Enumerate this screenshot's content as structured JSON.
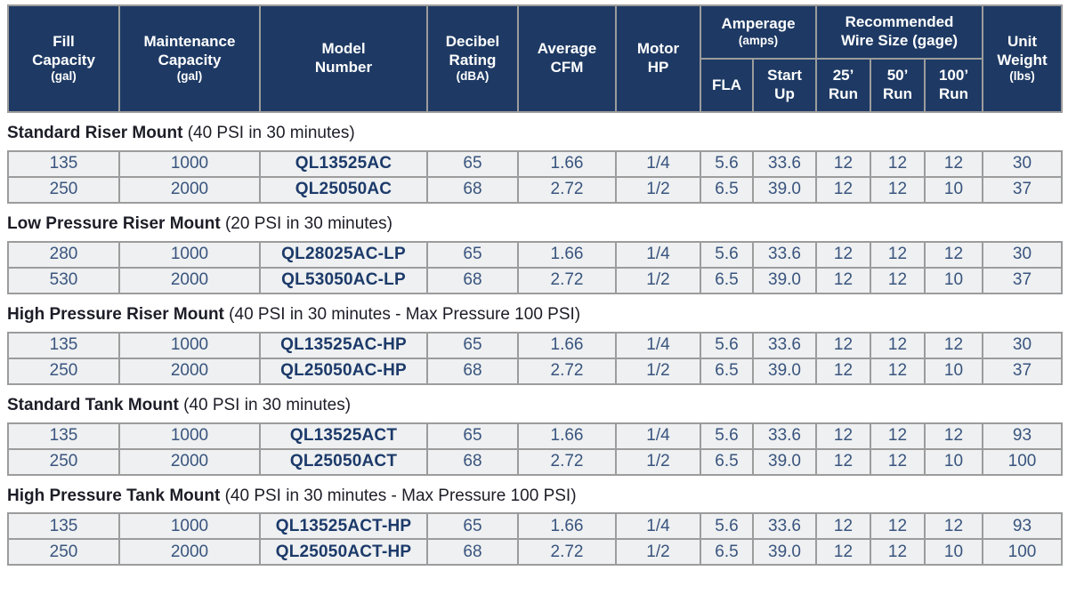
{
  "colors": {
    "header_bg": "#1e3a64",
    "border": "#9c9c9c",
    "row_bg": "#eef0f1",
    "data_text": "#39547e",
    "model_text": "#1c3a6a",
    "title_text": "#1d1d27"
  },
  "header": {
    "fill": {
      "label": "Fill\nCapacity",
      "unit": "(gal)"
    },
    "maintenance": {
      "label": "Maintenance\nCapacity",
      "unit": "(gal)"
    },
    "model": {
      "label": "Model\nNumber",
      "unit": ""
    },
    "decibel": {
      "label": "Decibel\nRating",
      "unit": "(dBA)"
    },
    "cfm": {
      "label": "Average\nCFM",
      "unit": ""
    },
    "hp": {
      "label": "Motor\nHP",
      "unit": ""
    },
    "amperage": {
      "label": "Amperage",
      "unit": "(amps)"
    },
    "wire": {
      "label": "Recommended\nWire Size (gage)",
      "unit": ""
    },
    "weight": {
      "label": "Unit\nWeight",
      "unit": "(lbs)"
    },
    "fla": {
      "label": "FLA"
    },
    "startup": {
      "label": "Start\nUp"
    },
    "run25": {
      "label": "25’\nRun"
    },
    "run50": {
      "label": "50’\nRun"
    },
    "run100": {
      "label": "100’\nRun"
    }
  },
  "sections": [
    {
      "title": "Standard Riser Mount",
      "note": "(40 PSI in 30 minutes)",
      "rows": [
        [
          "135",
          "1000",
          "QL13525AC",
          "65",
          "1.66",
          "1/4",
          "5.6",
          "33.6",
          "12",
          "12",
          "12",
          "30"
        ],
        [
          "250",
          "2000",
          "QL25050AC",
          "68",
          "2.72",
          "1/2",
          "6.5",
          "39.0",
          "12",
          "12",
          "10",
          "37"
        ]
      ]
    },
    {
      "title": "Low Pressure Riser Mount",
      "note": "(20 PSI in 30 minutes)",
      "rows": [
        [
          "280",
          "1000",
          "QL28025AC-LP",
          "65",
          "1.66",
          "1/4",
          "5.6",
          "33.6",
          "12",
          "12",
          "12",
          "30"
        ],
        [
          "530",
          "2000",
          "QL53050AC-LP",
          "68",
          "2.72",
          "1/2",
          "6.5",
          "39.0",
          "12",
          "12",
          "10",
          "37"
        ]
      ]
    },
    {
      "title": "High Pressure Riser Mount",
      "note": "(40 PSI in 30 minutes - Max Pressure 100 PSI)",
      "rows": [
        [
          "135",
          "1000",
          "QL13525AC-HP",
          "65",
          "1.66",
          "1/4",
          "5.6",
          "33.6",
          "12",
          "12",
          "12",
          "30"
        ],
        [
          "250",
          "2000",
          "QL25050AC-HP",
          "68",
          "2.72",
          "1/2",
          "6.5",
          "39.0",
          "12",
          "12",
          "10",
          "37"
        ]
      ]
    },
    {
      "title": "Standard Tank Mount",
      "note": "(40 PSI in 30 minutes)",
      "rows": [
        [
          "135",
          "1000",
          "QL13525ACT",
          "65",
          "1.66",
          "1/4",
          "5.6",
          "33.6",
          "12",
          "12",
          "12",
          "93"
        ],
        [
          "250",
          "2000",
          "QL25050ACT",
          "68",
          "2.72",
          "1/2",
          "6.5",
          "39.0",
          "12",
          "12",
          "10",
          "100"
        ]
      ]
    },
    {
      "title": "High Pressure Tank Mount",
      "note": "(40 PSI in 30 minutes - Max Pressure 100 PSI)",
      "rows": [
        [
          "135",
          "1000",
          "QL13525ACT-HP",
          "65",
          "1.66",
          "1/4",
          "5.6",
          "33.6",
          "12",
          "12",
          "12",
          "93"
        ],
        [
          "250",
          "2000",
          "QL25050ACT-HP",
          "68",
          "2.72",
          "1/2",
          "6.5",
          "39.0",
          "12",
          "12",
          "10",
          "100"
        ]
      ]
    }
  ]
}
